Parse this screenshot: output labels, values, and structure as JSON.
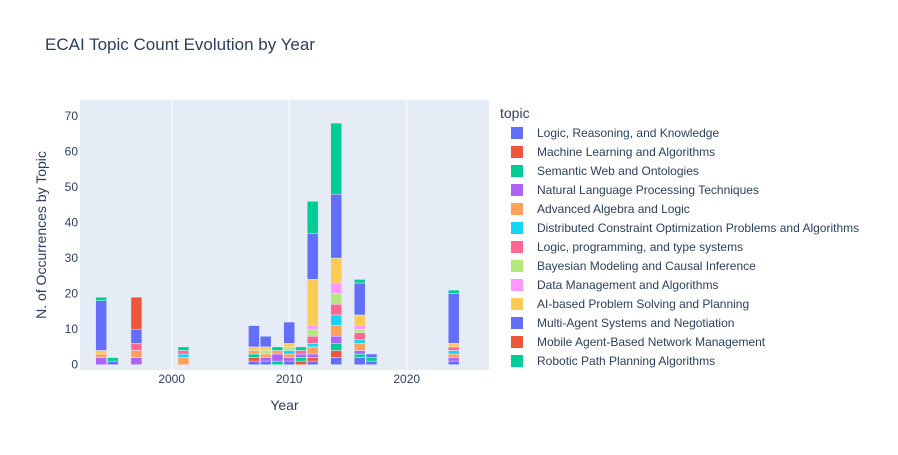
{
  "chart_data": {
    "type": "bar",
    "barmode": "stack",
    "title": "ECAI Topic Count Evolution by Year",
    "xlabel": "Year",
    "ylabel": "N. of Occurrences by Topic",
    "xlim": [
      1992.2,
      2027
    ],
    "ylim": [
      -1.5,
      74.5
    ],
    "xticks": [
      2000,
      2010,
      2020
    ],
    "yticks": [
      0,
      10,
      20,
      30,
      40,
      50,
      60,
      70
    ],
    "grid": true,
    "legend": {
      "title": "topic",
      "position": "right"
    },
    "topics": [
      {
        "name": "Logic, Reasoning, and Knowledge",
        "color": "#636efa"
      },
      {
        "name": "Machine Learning and Algorithms",
        "color": "#EF553B"
      },
      {
        "name": "Semantic Web and Ontologies",
        "color": "#00cc96"
      },
      {
        "name": "Natural Language Processing Techniques",
        "color": "#ab63fa"
      },
      {
        "name": "Advanced Algebra and Logic",
        "color": "#FFA15A"
      },
      {
        "name": "Distributed Constraint Optimization Problems and Algorithms",
        "color": "#19d3f3"
      },
      {
        "name": "Logic, programming, and type systems",
        "color": "#FF6692"
      },
      {
        "name": "Bayesian Modeling and Causal Inference",
        "color": "#B6E880"
      },
      {
        "name": "Data Management and Algorithms",
        "color": "#FF97FF"
      },
      {
        "name": "AI-based Problem Solving and Planning",
        "color": "#FECB52"
      },
      {
        "name": "Multi-Agent Systems and Negotiation",
        "color": "#636efa"
      },
      {
        "name": "Mobile Agent-Based Network Management",
        "color": "#EF553B"
      },
      {
        "name": "Robotic Path Planning Algorithms",
        "color": "#00cc96"
      }
    ],
    "years": [
      {
        "year": 1994,
        "values": [
          0,
          0,
          0,
          2,
          1,
          0,
          0,
          0,
          0,
          1,
          14,
          0,
          1
        ]
      },
      {
        "year": 1995,
        "values": [
          0,
          0,
          0,
          0,
          0,
          0,
          0,
          0,
          0,
          0,
          1,
          0,
          1
        ]
      },
      {
        "year": 1997,
        "values": [
          0,
          0,
          0,
          2,
          2,
          0,
          2,
          0,
          0,
          0,
          4,
          9,
          0
        ]
      },
      {
        "year": 2001,
        "values": [
          0,
          0,
          0,
          0,
          2,
          1,
          1,
          0,
          0,
          0,
          0,
          0,
          1
        ]
      },
      {
        "year": 2007,
        "values": [
          1,
          1,
          1,
          0,
          1,
          0,
          0,
          0,
          0,
          1,
          6,
          0,
          0
        ]
      },
      {
        "year": 2008,
        "values": [
          1,
          0,
          0,
          1,
          1,
          0,
          0,
          1,
          0,
          1,
          3,
          0,
          0
        ]
      },
      {
        "year": 2009,
        "values": [
          0,
          0,
          1,
          2,
          1,
          0,
          0,
          0,
          0,
          0,
          0,
          0,
          1
        ]
      },
      {
        "year": 2010,
        "values": [
          1,
          0,
          0,
          1,
          1,
          1,
          0,
          1,
          0,
          1,
          6,
          0,
          0
        ]
      },
      {
        "year": 2011,
        "values": [
          0,
          1,
          1,
          1,
          0,
          0,
          1,
          0,
          0,
          0,
          0,
          0,
          1
        ]
      },
      {
        "year": 2012,
        "values": [
          1,
          1,
          0,
          1,
          2,
          1,
          2,
          2,
          1,
          13,
          13,
          0,
          9
        ]
      },
      {
        "year": 2014,
        "values": [
          2,
          2,
          2,
          2,
          3,
          3,
          3,
          3,
          3,
          7,
          18,
          0,
          20
        ]
      },
      {
        "year": 2016,
        "values": [
          2,
          0,
          1,
          1,
          2,
          1,
          2,
          1,
          1,
          3,
          9,
          0,
          1
        ]
      },
      {
        "year": 2017,
        "values": [
          1,
          0,
          1,
          0,
          0,
          0,
          0,
          0,
          0,
          0,
          1,
          0,
          0
        ]
      },
      {
        "year": 2024,
        "values": [
          1,
          0,
          0,
          1,
          1,
          1,
          1,
          0,
          0,
          1,
          14,
          0,
          1
        ]
      }
    ]
  }
}
